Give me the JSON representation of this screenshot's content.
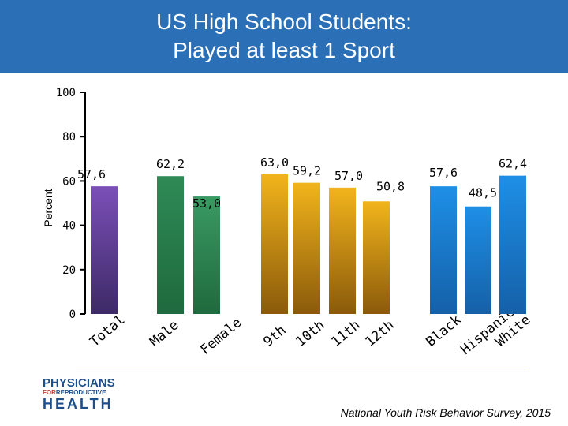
{
  "title": {
    "line1": "US High School Students:",
    "line2": "Played at least 1 Sport"
  },
  "chart_data": {
    "type": "bar",
    "ylabel": "Percent",
    "ylim": [
      0,
      100
    ],
    "yticks": [
      "0",
      "20",
      "40",
      "60",
      "80",
      "100"
    ],
    "grid": false,
    "categories": [
      "Total",
      "Male",
      "Female",
      "9th",
      "10th",
      "11th",
      "12th",
      "Black",
      "Hispanic",
      "White"
    ],
    "values": [
      57.6,
      62.2,
      53.0,
      63.0,
      59.2,
      57.0,
      50.8,
      57.6,
      48.5,
      62.4
    ],
    "value_labels": [
      "57,6",
      "62,2",
      "53,0",
      "63,0",
      "59,2",
      "57,0",
      "50,8",
      "57,6",
      "48,5",
      "62,4"
    ],
    "groups": [
      "total",
      "sex",
      "sex",
      "grade",
      "grade",
      "grade",
      "grade",
      "race",
      "race",
      "race"
    ]
  },
  "colors": {
    "total": "#7b4fb8",
    "sex_1": "#2e8a55",
    "sex_2": "#3a9a62",
    "grade": "#f2b41c",
    "race": "#1e8fe6",
    "title_band": "#2b6fb6"
  },
  "logo": {
    "line1": "PHYSICIANS",
    "line2a": "FOR",
    "line2b": "REPRODUCTIVE",
    "line3": "HEALTH"
  },
  "source": "National Youth Risk Behavior Survey, 2015"
}
